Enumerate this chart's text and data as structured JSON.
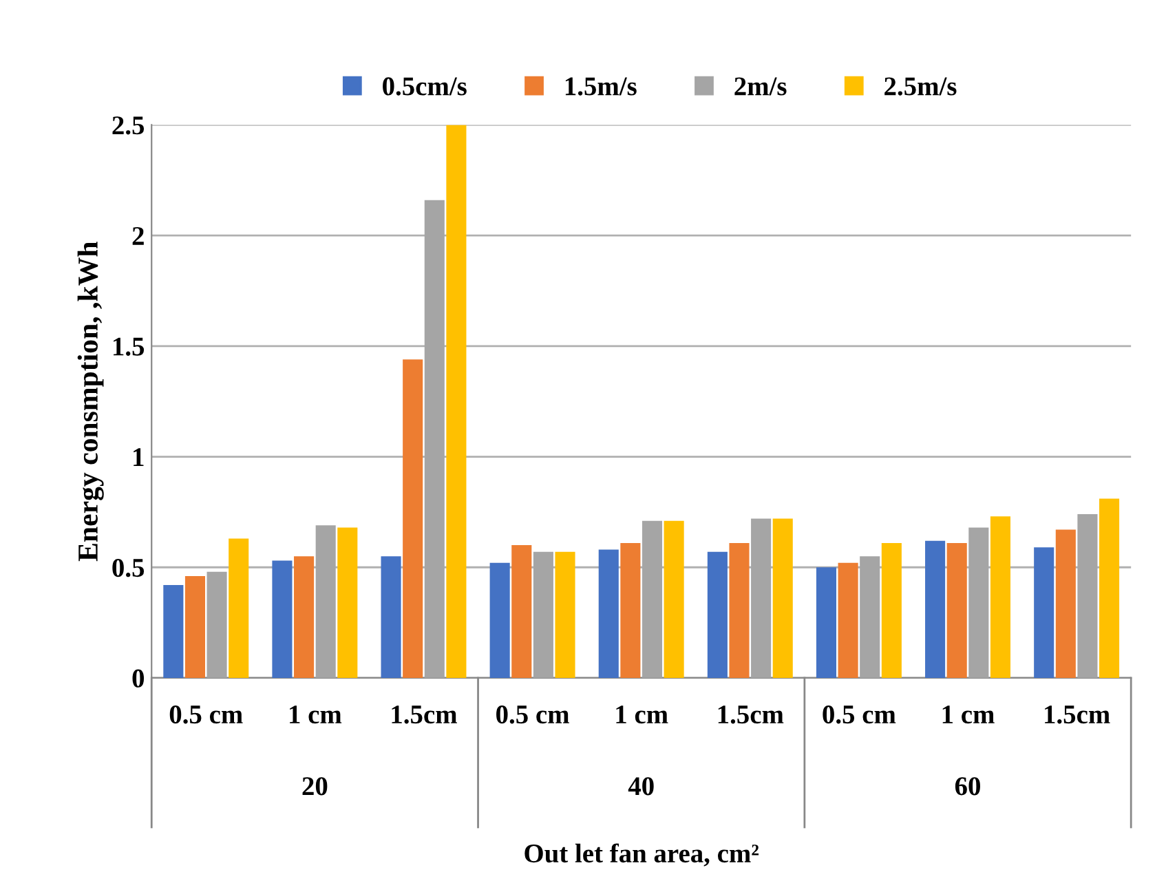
{
  "chart_data": {
    "type": "bar",
    "categories": [
      "0.5 cm",
      "1 cm",
      "1.5cm",
      "0.5 cm",
      "1 cm",
      "1.5cm",
      "0.5 cm",
      "1 cm",
      "1.5cm"
    ],
    "annotations": [
      "20",
      "40",
      "60"
    ],
    "xlabel": "Out let fan area, cm²",
    "ylabel": "Energy consmption, ,kWh",
    "series": [
      {
        "name": "0.5cm/s",
        "color": "#4472c4",
        "values": [
          0.42,
          0.53,
          0.55,
          0.52,
          0.58,
          0.57,
          0.5,
          0.62,
          0.59
        ]
      },
      {
        "name": "1.5m/s",
        "color": "#ed7d31",
        "values": [
          0.46,
          0.55,
          1.44,
          0.6,
          0.61,
          0.61,
          0.52,
          0.61,
          0.67
        ]
      },
      {
        "name": "2m/s",
        "color": "#a5a5a5",
        "values": [
          0.48,
          0.69,
          2.16,
          0.57,
          0.71,
          0.72,
          0.55,
          0.68,
          0.74
        ]
      },
      {
        "name": "2.5m/s",
        "color": "#ffc000",
        "values": [
          0.63,
          0.68,
          2.5,
          0.57,
          0.71,
          0.72,
          0.61,
          0.73,
          0.81
        ]
      }
    ],
    "ylim": [
      0,
      2.5
    ],
    "yticks": [
      0,
      0.5,
      1,
      1.5,
      2,
      2.5
    ],
    "grid": "y",
    "legend": "top"
  }
}
